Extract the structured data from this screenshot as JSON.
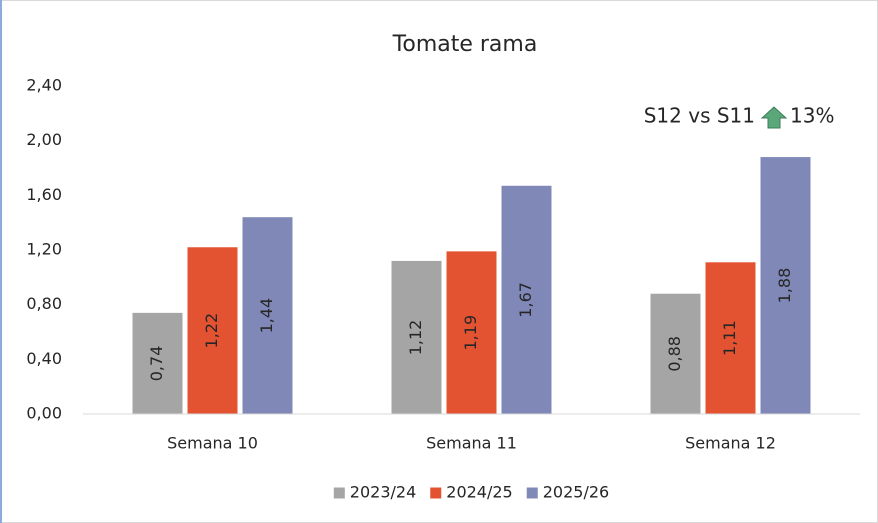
{
  "chart_data": {
    "type": "bar",
    "title": "Tomate rama",
    "categories": [
      "Semana 10",
      "Semana 11",
      "Semana 12"
    ],
    "series": [
      {
        "name": "2023/24",
        "color": "#a5a5a5",
        "values": [
          0.74,
          1.12,
          0.88
        ],
        "value_labels": [
          "0,74",
          "1,12",
          "0,88"
        ]
      },
      {
        "name": "2024/25",
        "color": "#e35332",
        "values": [
          1.22,
          1.19,
          1.11
        ],
        "value_labels": [
          "1,22",
          "1,19",
          "1,11"
        ]
      },
      {
        "name": "2025/26",
        "color": "#8088b8",
        "values": [
          1.44,
          1.67,
          1.88
        ],
        "value_labels": [
          "1,44",
          "1,67",
          "1,88"
        ]
      }
    ],
    "annotations": [
      "S12 vs S11",
      "13%"
    ],
    "ylim": [
      0,
      2.4
    ],
    "yticks": [
      {
        "value": 0,
        "label": "0,00"
      },
      {
        "value": 0.4,
        "label": "0,40"
      },
      {
        "value": 0.8,
        "label": "0,80"
      },
      {
        "value": 1.2,
        "label": "1,20"
      },
      {
        "value": 1.6,
        "label": "1,60"
      },
      {
        "value": 2.0,
        "label": "2,00"
      },
      {
        "value": 2.4,
        "label": "2,40"
      }
    ],
    "grid": false,
    "legend": "bottom"
  }
}
